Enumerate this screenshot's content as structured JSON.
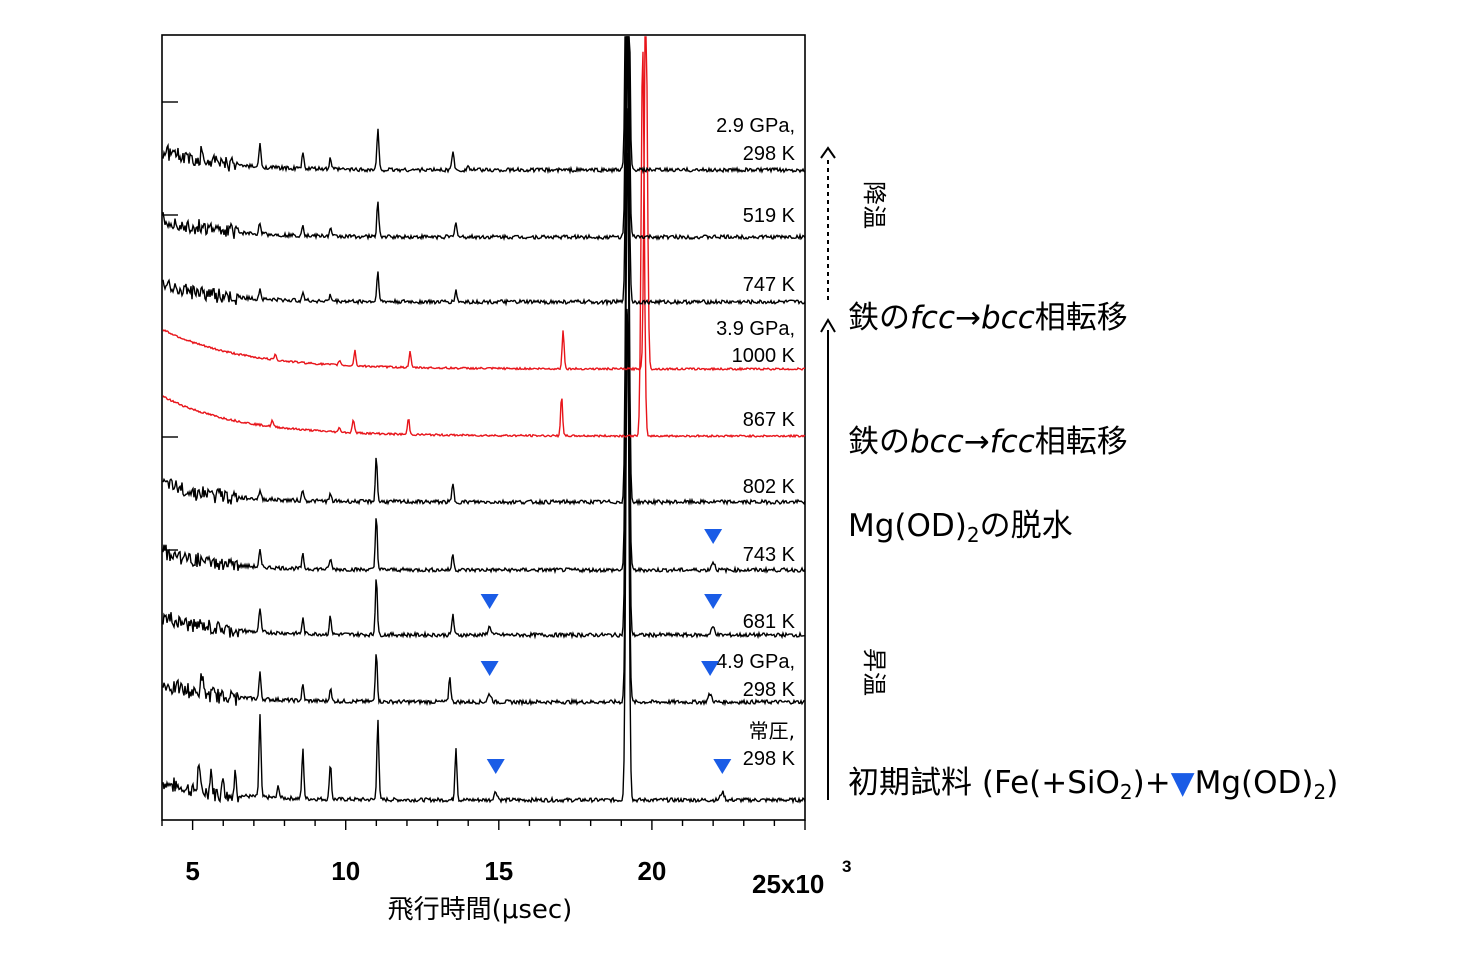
{
  "chart_data": {
    "type": "line",
    "xlabel": "飛行時間(μsec)",
    "x_ticks": [
      "5",
      "10",
      "15",
      "20"
    ],
    "x_multiplier": "25x10",
    "x_multiplier_exp": "3",
    "xlim": [
      4000,
      25000
    ],
    "marker_color": "#1a5ce6",
    "series": [
      {
        "cond": [
          "常圧,",
          "298 K"
        ],
        "color": "#000000",
        "peaks": [
          [
            5200,
            0.35
          ],
          [
            5600,
            0.28
          ],
          [
            6000,
            0.22
          ],
          [
            6400,
            0.3
          ],
          [
            7200,
            1.0
          ],
          [
            7800,
            0.15
          ],
          [
            8600,
            0.6
          ],
          [
            9500,
            0.45
          ],
          [
            11050,
            1.0
          ],
          [
            13600,
            0.65
          ],
          [
            19200,
            1.0
          ]
        ],
        "marker_x": [
          14900,
          22300
        ]
      },
      {
        "cond": [
          "4.9 GPa,",
          "298 K"
        ],
        "color": "#000000",
        "peaks": [
          [
            5300,
            0.4
          ],
          [
            7200,
            0.5
          ],
          [
            8600,
            0.3
          ],
          [
            9500,
            0.25
          ],
          [
            11000,
            1.0
          ],
          [
            13400,
            0.5
          ],
          [
            19200,
            1.0
          ]
        ],
        "marker_x": [
          14700,
          21900
        ]
      },
      {
        "cond": [
          "681 K"
        ],
        "color": "#000000",
        "peaks": [
          [
            7200,
            0.4
          ],
          [
            8600,
            0.25
          ],
          [
            9500,
            0.3
          ],
          [
            11000,
            1.0
          ],
          [
            13500,
            0.35
          ],
          [
            19200,
            1.0
          ]
        ],
        "marker_x": [
          14700,
          22000
        ]
      },
      {
        "cond": [
          "743 K"
        ],
        "color": "#000000",
        "peaks": [
          [
            7200,
            0.3
          ],
          [
            8600,
            0.25
          ],
          [
            9500,
            0.2
          ],
          [
            11000,
            1.0
          ],
          [
            13500,
            0.3
          ],
          [
            19200,
            1.0
          ]
        ],
        "marker_x": [
          22000
        ]
      },
      {
        "cond": [
          "802 K"
        ],
        "color": "#000000",
        "peaks": [
          [
            7200,
            0.2
          ],
          [
            8600,
            0.25
          ],
          [
            9500,
            0.15
          ],
          [
            11000,
            1.0
          ],
          [
            13500,
            0.4
          ],
          [
            19200,
            1.0
          ]
        ],
        "marker_x": []
      },
      {
        "cond": [
          "867 K"
        ],
        "color": "#e8141a",
        "peaks": [
          [
            7600,
            0.15
          ],
          [
            9800,
            0.12
          ],
          [
            10250,
            0.35
          ],
          [
            12050,
            0.4
          ],
          [
            17050,
            1.0
          ],
          [
            19700,
            1.0
          ]
        ],
        "marker_x": []
      },
      {
        "cond": [
          "3.9 GPa,",
          "1000 K"
        ],
        "color": "#e8141a",
        "peaks": [
          [
            7700,
            0.15
          ],
          [
            9800,
            0.12
          ],
          [
            10300,
            0.35
          ],
          [
            12100,
            0.35
          ],
          [
            17100,
            0.9
          ],
          [
            19800,
            1.0
          ]
        ],
        "marker_x": []
      },
      {
        "cond": [
          "747 K"
        ],
        "color": "#000000",
        "peaks": [
          [
            7200,
            0.25
          ],
          [
            8600,
            0.25
          ],
          [
            9500,
            0.15
          ],
          [
            11050,
            0.8
          ],
          [
            13600,
            0.3
          ],
          [
            19200,
            1.0
          ]
        ],
        "marker_x": []
      },
      {
        "cond": [
          "519 K"
        ],
        "color": "#000000",
        "peaks": [
          [
            7200,
            0.3
          ],
          [
            8600,
            0.3
          ],
          [
            9500,
            0.2
          ],
          [
            11050,
            0.9
          ],
          [
            13600,
            0.4
          ],
          [
            19200,
            1.0
          ]
        ],
        "marker_x": []
      },
      {
        "cond": [
          "2.9 GPa,",
          "298 K"
        ],
        "color": "#000000",
        "peaks": [
          [
            5300,
            0.3
          ],
          [
            7200,
            0.5
          ],
          [
            8600,
            0.35
          ],
          [
            9500,
            0.25
          ],
          [
            11050,
            0.9
          ],
          [
            13500,
            0.45
          ],
          [
            14000,
            0.1
          ],
          [
            19200,
            1.0
          ]
        ],
        "marker_x": []
      }
    ]
  },
  "annotations": {
    "cooling_label": "降温",
    "heating_label": "昇温",
    "fcc_bcc": {
      "pre": "鉄の",
      "a": "fcc",
      "arrow": "→",
      "b": "bcc",
      "post": "相転移"
    },
    "bcc_fcc": {
      "pre": "鉄の",
      "a": "bcc",
      "arrow": "→",
      "b": "fcc",
      "post": "相転移"
    },
    "dehydration": {
      "pre": "Mg(OD)",
      "sub": "2",
      "post": "の脱水"
    },
    "initial": {
      "pre": "初期試料 (Fe(+SiO",
      "sub1": "2",
      "mid": ")+",
      "marker": "▼",
      "post": "Mg(OD)",
      "sub2": "2",
      "end": ")"
    }
  }
}
